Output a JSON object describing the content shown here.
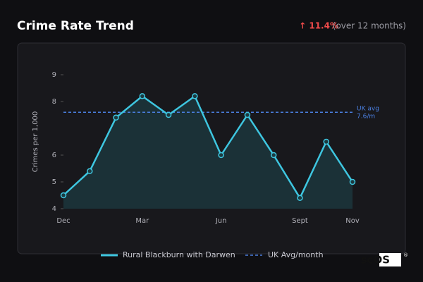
{
  "chart_data": {
    "type": "line",
    "title": "Crime Rate Trend",
    "change": "↑ 11.4%",
    "change_note": "(over 12 months)",
    "y_label": "Crimes per 1,000",
    "categories": [
      "Dec",
      null,
      null,
      "Mar",
      null,
      null,
      "Jun",
      null,
      null,
      "Sept",
      null,
      "Nov"
    ],
    "series": [
      {
        "name": "Rural Blackburn with Darwen",
        "color": "#3ec6e0",
        "values": [
          4.5,
          5.4,
          7.4,
          8.2,
          7.5,
          8.2,
          6.0,
          7.5,
          6.0,
          4.4,
          6.5,
          5.0
        ]
      }
    ],
    "reference": {
      "name": "UK Avg/month",
      "value": 7.6,
      "color": "#4a7fe0",
      "label": [
        "UK avg",
        "7.6/m"
      ]
    },
    "ylim": [
      4,
      9
    ],
    "yticks": [
      4,
      5,
      6,
      8,
      9
    ],
    "brand": "scOS",
    "brand_mark": "®"
  }
}
